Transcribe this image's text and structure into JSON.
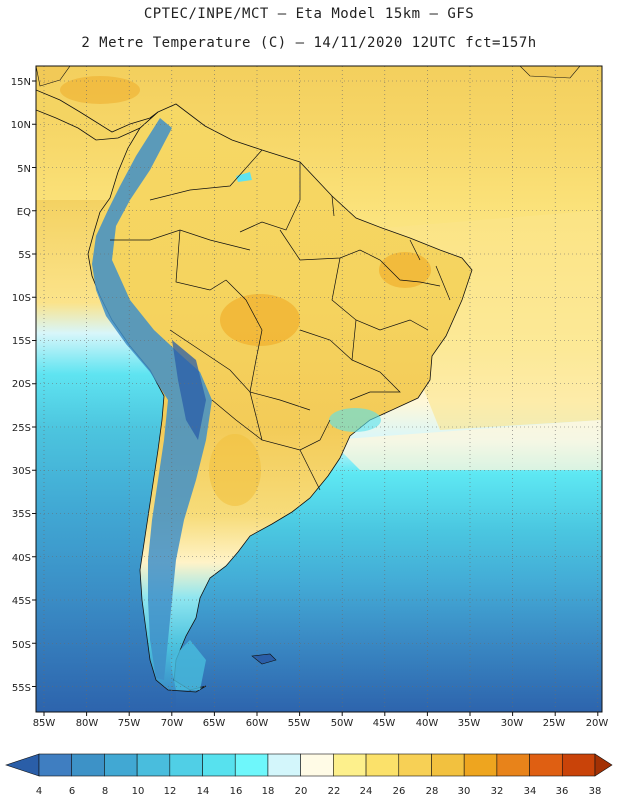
{
  "header": {
    "line1": "CPTEC/INPE/MCT –  Eta Model 15km – GFS",
    "line2": "2 Metre Temperature (C) – 14/11/2020 12UTC fct=157h"
  },
  "map": {
    "lat_labels": [
      "15N",
      "10N",
      "5N",
      "EQ",
      "5S",
      "10S",
      "15S",
      "20S",
      "25S",
      "30S",
      "35S",
      "40S",
      "45S",
      "50S",
      "55S"
    ],
    "lon_labels": [
      "85W",
      "80W",
      "75W",
      "70W",
      "65W",
      "60W",
      "55W",
      "50W",
      "45W",
      "40W",
      "35W",
      "30W",
      "25W",
      "20W"
    ],
    "grid": true
  },
  "colorbar": {
    "values": [
      "4",
      "6",
      "8",
      "10",
      "12",
      "14",
      "16",
      "18",
      "20",
      "22",
      "24",
      "26",
      "28",
      "30",
      "32",
      "34",
      "36",
      "38"
    ],
    "colors": [
      "#2a5ea8",
      "#3f7ec1",
      "#3d92c7",
      "#41a8d3",
      "#49bddd",
      "#50cfe6",
      "#57e1ee",
      "#6ef7fb",
      "#d3f6fb",
      "#fffbe6",
      "#fdf08c",
      "#fbe16a",
      "#f7d055",
      "#f2c13f",
      "#eea51f",
      "#e8831a",
      "#df5f12",
      "#c94309",
      "#a33104"
    ]
  }
}
